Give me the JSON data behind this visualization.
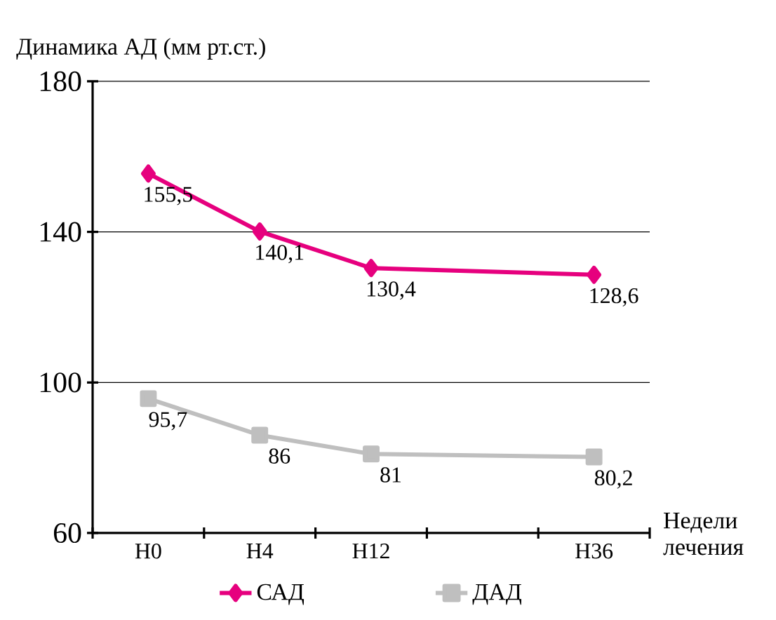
{
  "chart_data": {
    "type": "line",
    "ylabel": "Динамика АД (мм рт.ст.)",
    "xlabel": "Недели лечения",
    "categories": [
      "Н0",
      "Н4",
      "Н12",
      null,
      "Н36"
    ],
    "series": [
      {
        "name": "САД",
        "color": "#e6007e",
        "marker": "diamond",
        "values": [
          155.5,
          140.1,
          130.4,
          null,
          128.6
        ],
        "value_labels": [
          "155,5",
          "140,1",
          "130,4",
          null,
          "128,6"
        ]
      },
      {
        "name": "ДАД",
        "color": "#bfbfbf",
        "marker": "square",
        "values": [
          95.7,
          86,
          81,
          null,
          80.2
        ],
        "value_labels": [
          "95,7",
          "86",
          "81",
          null,
          "80,2"
        ]
      }
    ],
    "ylim": [
      60,
      180
    ],
    "yticks": [
      60,
      100,
      140,
      180
    ],
    "grid": "y",
    "legend": "bottom",
    "line_style": "solid"
  }
}
